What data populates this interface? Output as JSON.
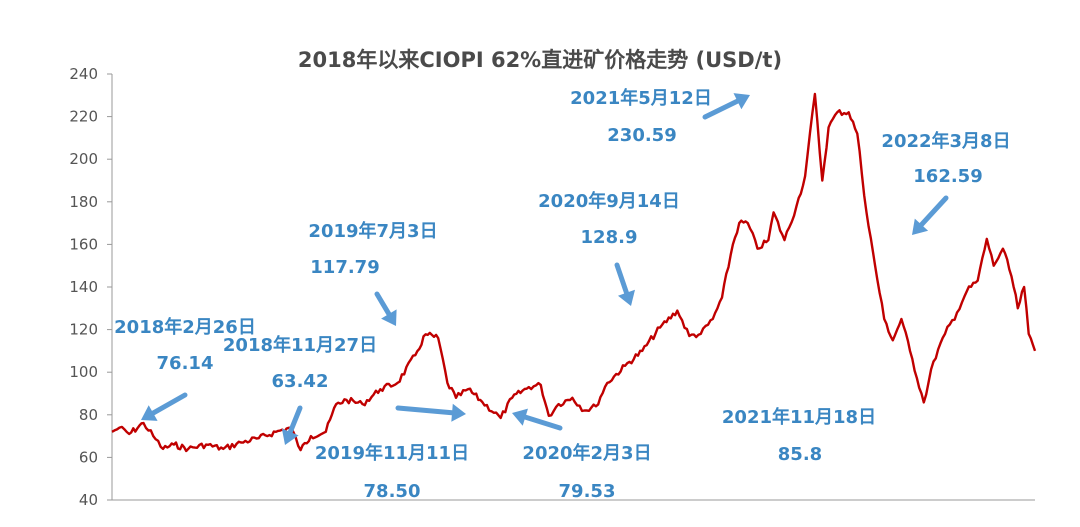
{
  "chart_data": {
    "type": "line",
    "title": "2018年以来CIOPI 62%直进矿价格走势 (USD/t)",
    "xlabel": "",
    "ylabel": "",
    "ylim": [
      40,
      240
    ],
    "yticks": [
      40,
      60,
      80,
      100,
      120,
      140,
      160,
      180,
      200,
      220,
      240
    ],
    "xlim": [
      "2018-01-02",
      "2022-05-31"
    ],
    "grid": false,
    "legend": "none",
    "series": [
      {
        "color": "#c00000",
        "points": [
          [
            "2018-01-02",
            72
          ],
          [
            "2018-01-15",
            74
          ],
          [
            "2018-02-01",
            71
          ],
          [
            "2018-02-26",
            76.14
          ],
          [
            "2018-03-15",
            70
          ],
          [
            "2018-04-01",
            64
          ],
          [
            "2018-04-20",
            66
          ],
          [
            "2018-05-15",
            64
          ],
          [
            "2018-06-15",
            66
          ],
          [
            "2018-07-15",
            64
          ],
          [
            "2018-08-15",
            67
          ],
          [
            "2018-09-15",
            69
          ],
          [
            "2018-10-15",
            72
          ],
          [
            "2018-11-10",
            74
          ],
          [
            "2018-11-27",
            63.42
          ],
          [
            "2018-12-15",
            70
          ],
          [
            "2019-01-10",
            72
          ],
          [
            "2019-01-28",
            85
          ],
          [
            "2019-02-15",
            87
          ],
          [
            "2019-03-15",
            85
          ],
          [
            "2019-04-15",
            92
          ],
          [
            "2019-05-15",
            95
          ],
          [
            "2019-06-15",
            108
          ],
          [
            "2019-07-03",
            117.79
          ],
          [
            "2019-07-25",
            116
          ],
          [
            "2019-08-10",
            95
          ],
          [
            "2019-08-25",
            88
          ],
          [
            "2019-09-15",
            92
          ],
          [
            "2019-10-10",
            86
          ],
          [
            "2019-11-11",
            78.5
          ],
          [
            "2019-12-01",
            88
          ],
          [
            "2019-12-30",
            93
          ],
          [
            "2020-01-20",
            94
          ],
          [
            "2020-02-03",
            79.53
          ],
          [
            "2020-02-20",
            85
          ],
          [
            "2020-03-15",
            88
          ],
          [
            "2020-04-05",
            82
          ],
          [
            "2020-04-25",
            84
          ],
          [
            "2020-05-15",
            95
          ],
          [
            "2020-06-15",
            103
          ],
          [
            "2020-07-15",
            110
          ],
          [
            "2020-08-15",
            121
          ],
          [
            "2020-09-14",
            128.9
          ],
          [
            "2020-10-05",
            117
          ],
          [
            "2020-10-25",
            118
          ],
          [
            "2020-11-15",
            125
          ],
          [
            "2020-12-01",
            135
          ],
          [
            "2020-12-20",
            160
          ],
          [
            "2020-12-31",
            170
          ],
          [
            "2021-01-15",
            170
          ],
          [
            "2021-02-01",
            158
          ],
          [
            "2021-02-20",
            162
          ],
          [
            "2021-03-01",
            175
          ],
          [
            "2021-03-20",
            162
          ],
          [
            "2021-04-10",
            178
          ],
          [
            "2021-04-25",
            192
          ],
          [
            "2021-05-12",
            230.59
          ],
          [
            "2021-05-25",
            190
          ],
          [
            "2021-06-05",
            215
          ],
          [
            "2021-06-20",
            222
          ],
          [
            "2021-07-10",
            222
          ],
          [
            "2021-07-25",
            212
          ],
          [
            "2021-08-10",
            175
          ],
          [
            "2021-08-25",
            150
          ],
          [
            "2021-09-10",
            125
          ],
          [
            "2021-09-25",
            115
          ],
          [
            "2021-10-10",
            125
          ],
          [
            "2021-10-25",
            110
          ],
          [
            "2021-11-18",
            85.8
          ],
          [
            "2021-12-05",
            105
          ],
          [
            "2021-12-25",
            118
          ],
          [
            "2022-01-15",
            128
          ],
          [
            "2022-02-01",
            138
          ],
          [
            "2022-02-20",
            143
          ],
          [
            "2022-03-08",
            162.59
          ],
          [
            "2022-03-20",
            150
          ],
          [
            "2022-04-05",
            158
          ],
          [
            "2022-04-20",
            145
          ],
          [
            "2022-05-01",
            130
          ],
          [
            "2022-05-12",
            140
          ],
          [
            "2022-05-20",
            118
          ],
          [
            "2022-05-31",
            110
          ]
        ]
      }
    ],
    "annotations": [
      {
        "date": "2018年2月26日",
        "value": "76.14",
        "x": "2018-02-26",
        "y": 76.14
      },
      {
        "date": "2018年11月27日",
        "value": "63.42",
        "x": "2018-11-27",
        "y": 63.42
      },
      {
        "date": "2019年7月3日",
        "value": "117.79",
        "x": "2019-07-03",
        "y": 117.79
      },
      {
        "date": "2019年11月11日",
        "value": "78.50",
        "x": "2019-11-11",
        "y": 78.5
      },
      {
        "date": "2020年2月3日",
        "value": "79.53",
        "x": "2020-02-03",
        "y": 79.53
      },
      {
        "date": "2020年9月14日",
        "value": "128.9",
        "x": "2020-09-14",
        "y": 128.9
      },
      {
        "date": "2021年5月12日",
        "value": "230.59",
        "x": "2021-05-12",
        "y": 230.59
      },
      {
        "date": "2021年11月18日",
        "value": "85.8",
        "x": "2021-11-18",
        "y": 85.8
      },
      {
        "date": "2022年3月8日",
        "value": "162.59",
        "x": "2022-03-08",
        "y": 162.59
      }
    ]
  }
}
